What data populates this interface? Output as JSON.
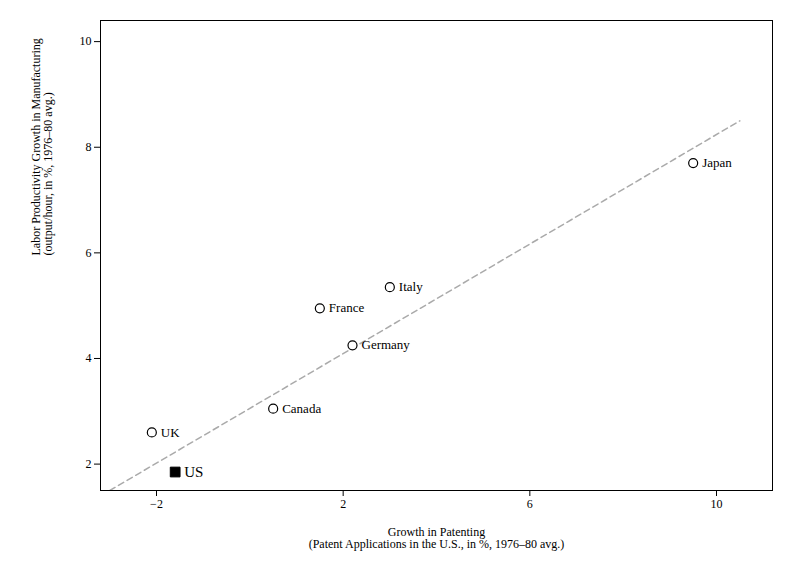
{
  "chart_data": {
    "type": "scatter",
    "xlabel": "Growth in Patenting\n(Patent Applications in the U.S., in %, 1976–80 avg.)",
    "ylabel": "Labor Productivity Growth in Manufacturing\n(output/hour, in %, 1976–80 avg.)",
    "series": [
      {
        "type": "scatter",
        "marker": "circle_open",
        "color": "#000000",
        "labels": [
          "Japan",
          "Italy",
          "France",
          "Germany",
          "Canada",
          "UK"
        ],
        "x": [
          9.5,
          3.0,
          1.5,
          2.2,
          0.5,
          -2.1
        ],
        "y": [
          7.7,
          5.35,
          4.95,
          4.25,
          3.05,
          2.6
        ]
      },
      {
        "type": "scatter",
        "marker": "square",
        "color": "#000000",
        "labels": [
          "US"
        ],
        "x": [
          -1.6
        ],
        "y": [
          1.85
        ]
      },
      {
        "type": "line",
        "line_style": "dashed",
        "color": "#aaaaaa",
        "x": [
          -3.0,
          10.5
        ],
        "y": [
          1.5,
          8.5
        ]
      }
    ],
    "xlim": [
      -3.2,
      11.2
    ],
    "ylim": [
      1.5,
      10.4
    ],
    "xticks": [
      -2,
      2,
      6,
      10
    ],
    "yticks": [
      2,
      4,
      6,
      8,
      10
    ],
    "grid": false
  }
}
